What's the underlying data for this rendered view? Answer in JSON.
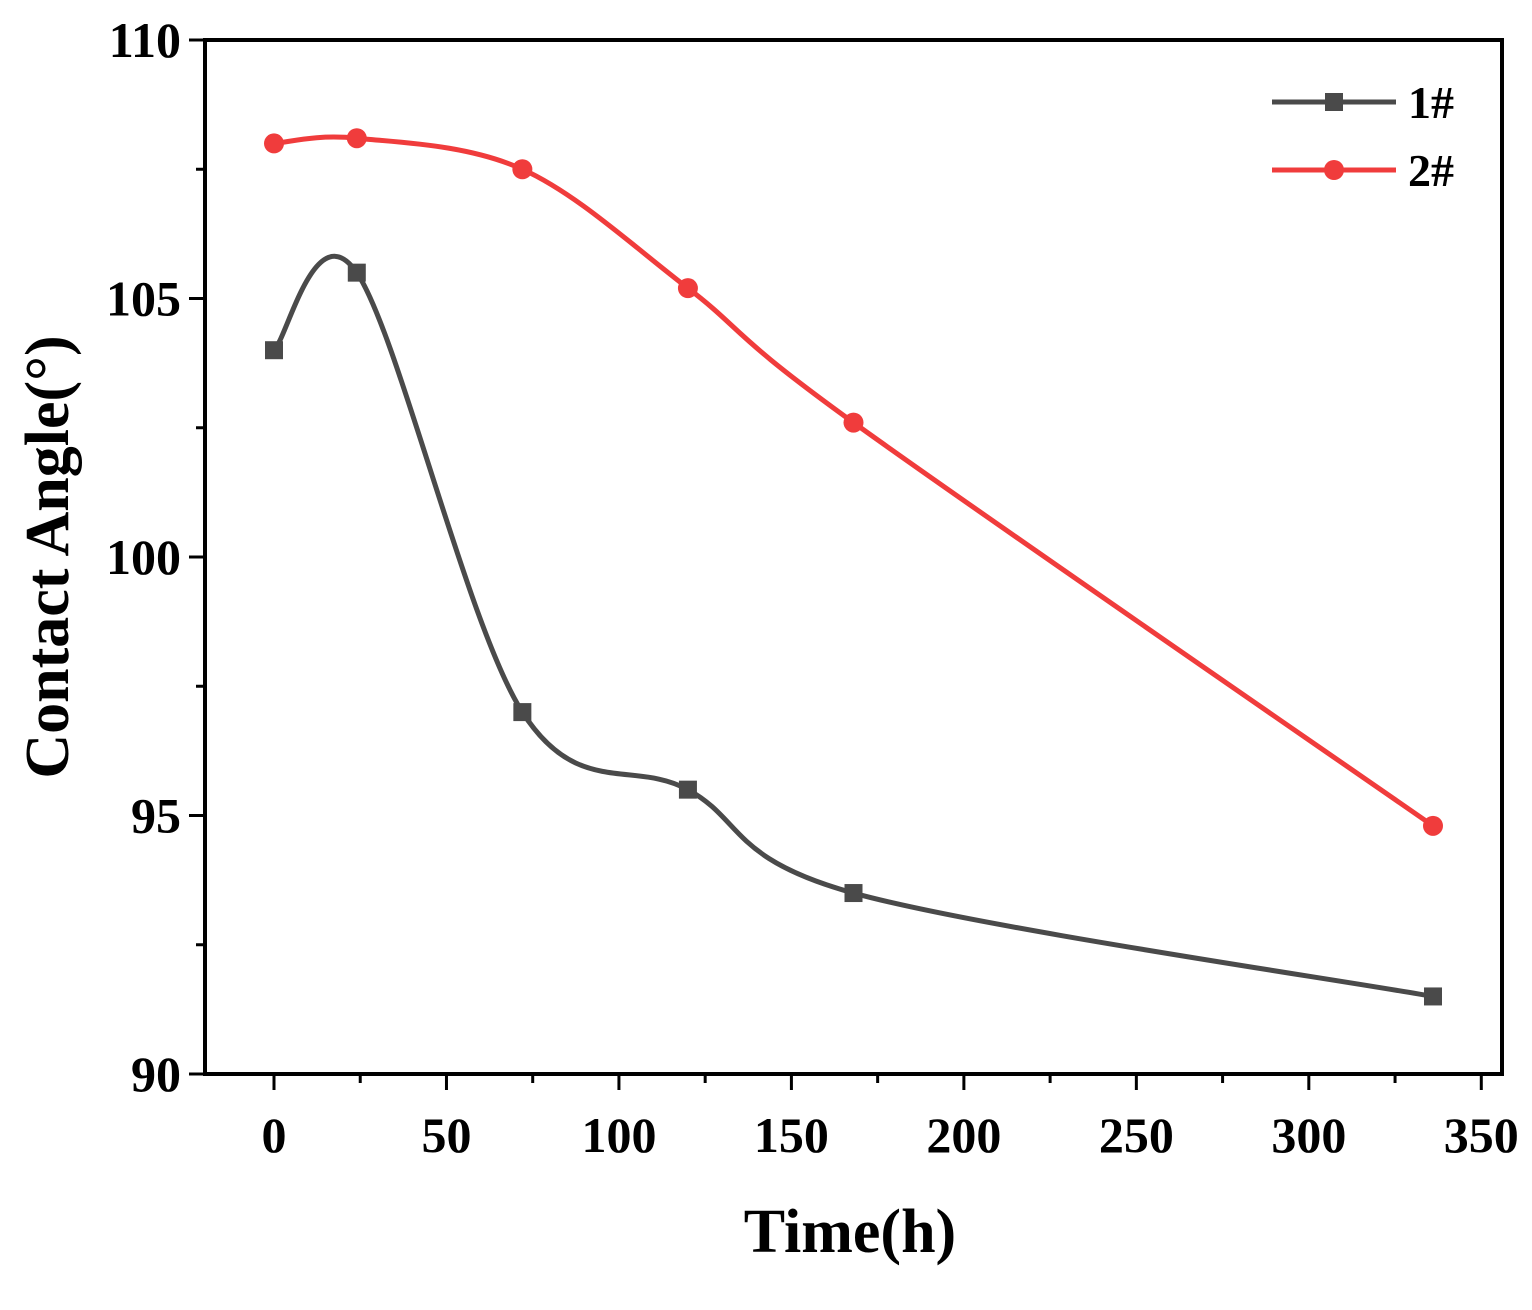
{
  "chart_data": {
    "type": "line",
    "title": "",
    "xlabel": "Time(h)",
    "ylabel": "Contact Angle(°)",
    "xlim": [
      -30,
      355
    ],
    "ylim": [
      90,
      110
    ],
    "xticks": [
      0,
      50,
      100,
      150,
      200,
      250,
      300,
      350
    ],
    "xtick_labels": [
      "0",
      "50",
      "100",
      "150",
      "200",
      "250",
      "300",
      "350"
    ],
    "yticks": [
      90,
      95,
      100,
      105,
      110
    ],
    "ytick_labels": [
      "90",
      "95",
      "100",
      "105",
      "110"
    ],
    "legend_position": "top-right",
    "x": [
      0,
      24,
      72,
      120,
      168,
      336
    ],
    "series": [
      {
        "name": "1#",
        "marker": "square",
        "color": "#4a4a4a",
        "values": [
          104.0,
          105.5,
          97.0,
          95.5,
          93.5,
          91.5
        ]
      },
      {
        "name": "2#",
        "marker": "circle",
        "color": "#f03c3c",
        "values": [
          108.0,
          108.1,
          107.5,
          105.2,
          102.6,
          94.8
        ]
      }
    ]
  }
}
